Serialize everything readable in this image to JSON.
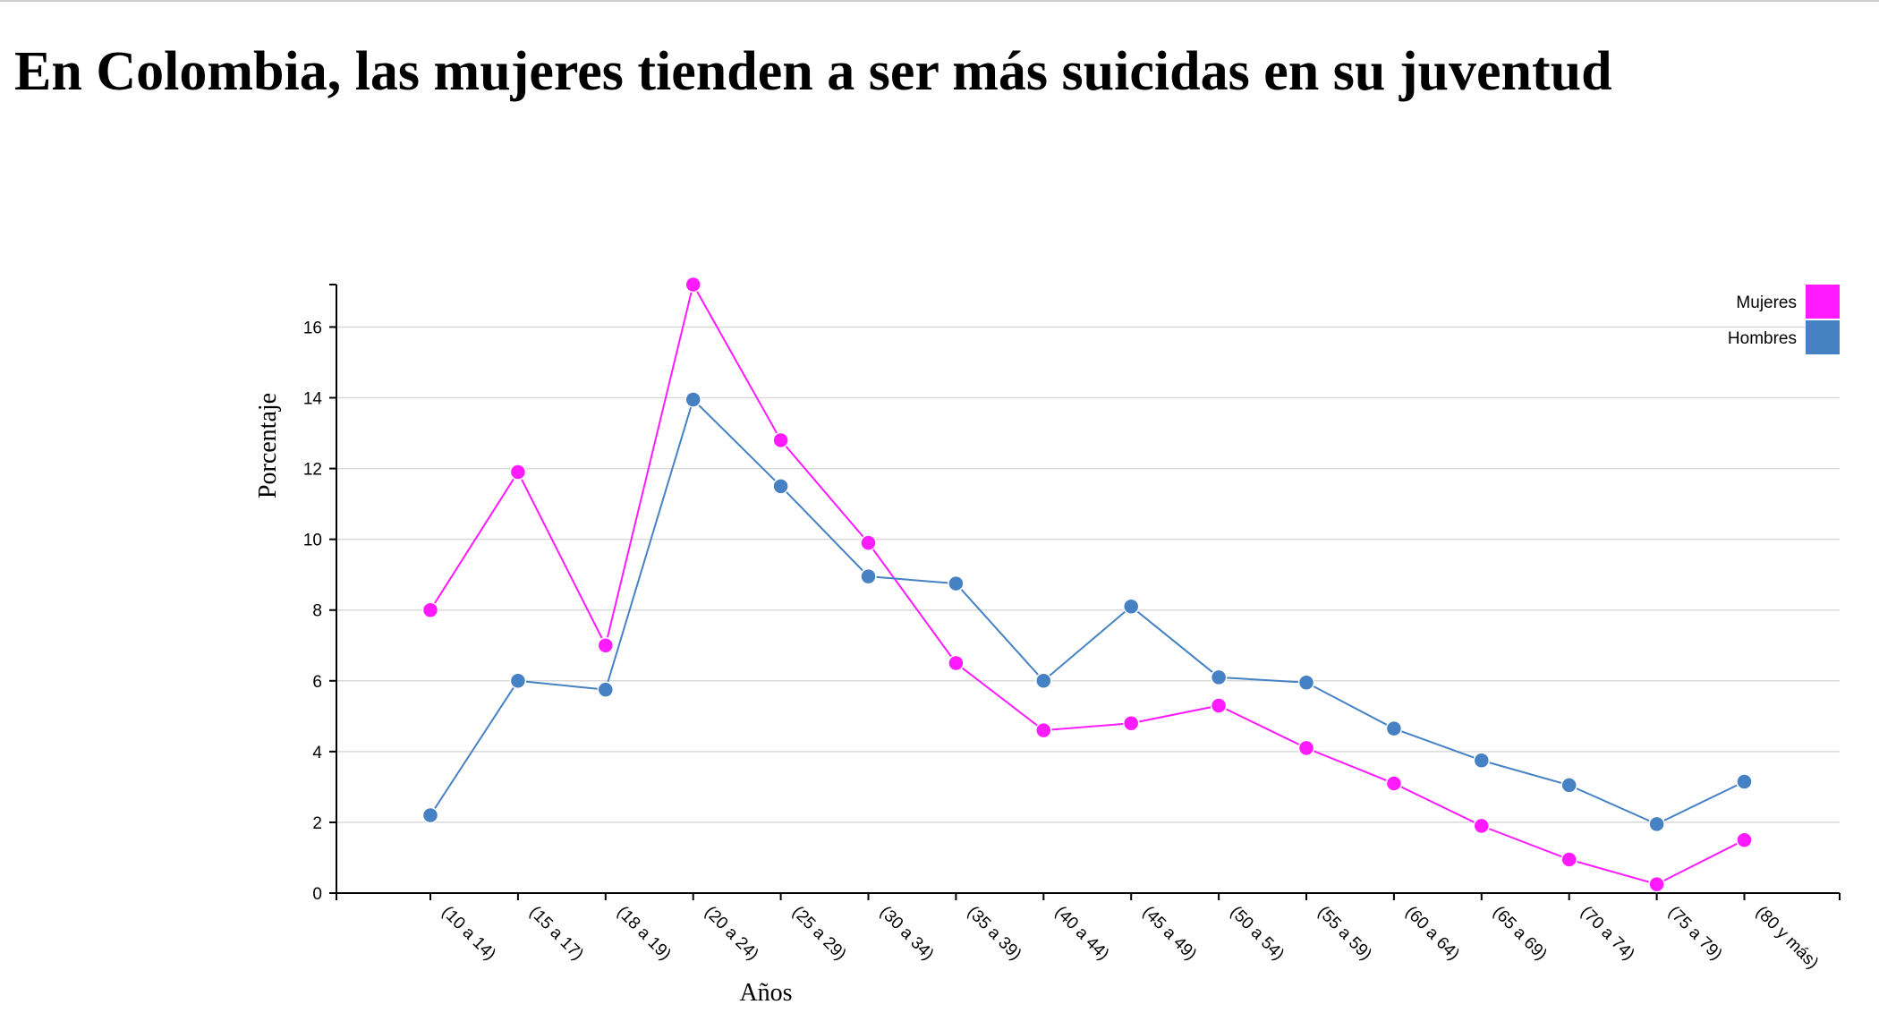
{
  "page": {
    "title": "En Colombia, las mujeres tienden a ser más suicidas en su juventud"
  },
  "colors": {
    "mujeres": "#ff1aff",
    "hombres": "#4682c3",
    "grid": "#d9d9d9",
    "axis": "#000000"
  },
  "chart_data": {
    "type": "line",
    "title": "En Colombia, las mujeres tienden a ser más suicidas en su juventud",
    "xlabel": "Años",
    "ylabel": "Porcentaje",
    "ylim": [
      0,
      17.2
    ],
    "yticks": [
      0,
      2,
      4,
      6,
      8,
      10,
      12,
      14,
      16
    ],
    "grid": true,
    "legend_position": "top-right",
    "categories": [
      "(10 a 14)",
      "(15 a 17)",
      "(18 a 19)",
      "(20 a 24)",
      "(25 a 29)",
      "(30 a 34)",
      "(35 a 39)",
      "(40 a 44)",
      "(45 a 49)",
      "(50 a 54)",
      "(55 a 59)",
      "(60 a 64)",
      "(65 a 69)",
      "(70 a 74)",
      "(75 a 79)",
      "(80 y más)"
    ],
    "series": [
      {
        "name": "Mujeres",
        "color": "#ff1aff",
        "values": [
          8.0,
          11.9,
          7.0,
          17.2,
          12.8,
          9.9,
          6.5,
          4.6,
          4.8,
          5.3,
          4.1,
          3.1,
          1.9,
          0.95,
          0.25,
          1.5
        ]
      },
      {
        "name": "Hombres",
        "color": "#4682c3",
        "values": [
          2.2,
          6.0,
          5.75,
          13.95,
          11.5,
          8.95,
          8.75,
          6.0,
          8.1,
          6.1,
          5.95,
          4.65,
          3.75,
          3.05,
          1.95,
          3.15
        ]
      }
    ]
  }
}
